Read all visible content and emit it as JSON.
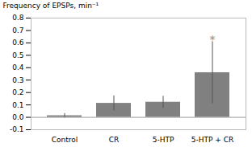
{
  "chart_data": {
    "type": "bar",
    "categories": [
      "Control",
      "CR",
      "5-HTP",
      "5-HTP + CR"
    ],
    "values": [
      0.013,
      0.113,
      0.122,
      0.36
    ],
    "errors": [
      0.018,
      0.06,
      0.048,
      0.25
    ],
    "color": "#808080",
    "ylabel": "Frequency of EPSPs, min⁻¹",
    "ylim": [
      -0.1,
      0.8
    ],
    "yticks": [
      -0.1,
      {
        "value": 0,
        "label": "0.0"
      },
      0.1,
      0.2,
      0.3,
      0.4,
      0.5,
      0.6,
      0.7,
      0.8
    ],
    "annotations": [
      {
        "text": "*",
        "x": "5-HTP + CR",
        "y": 0.625
      }
    ],
    "grid": false
  }
}
